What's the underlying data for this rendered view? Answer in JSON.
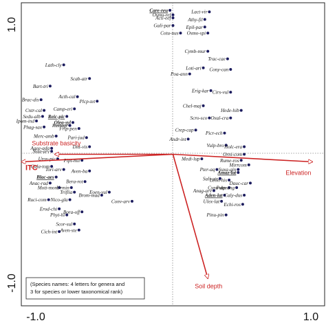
{
  "chart_data": {
    "type": "scatter",
    "title": "",
    "xlim": [
      -1.0,
      1.0
    ],
    "ylim": [
      -1.0,
      1.0
    ],
    "x_ticks": [
      "-1.0",
      "1.0"
    ],
    "y_ticks": [
      "1.0",
      "-1.0"
    ],
    "grid": false,
    "reference_lines": "dotted zero lines",
    "vector_color": "#cc2222",
    "point_color": "#1c1c5e",
    "note": "(Species names: 4 letters for genera and 3 for species or lower taxonomical rank)",
    "vectors": [
      {
        "label": "Substrate basicity",
        "x": -0.78,
        "y": 0.0,
        "bold": false
      },
      {
        "label": "ITC",
        "x": -1.0,
        "y": -0.05,
        "bold": true
      },
      {
        "label": "Elevation",
        "x": 0.92,
        "y": -0.05,
        "bold": false
      },
      {
        "label": "Soil depth",
        "x": 0.23,
        "y": -0.82,
        "bold": false
      }
    ],
    "species": [
      {
        "name": "Care-reu",
        "x": -0.02,
        "y": 0.95,
        "bold": true
      },
      {
        "name": "Lact-vir",
        "x": 0.24,
        "y": 0.94
      },
      {
        "name": "Osmu-ref",
        "x": 0.0,
        "y": 0.92
      },
      {
        "name": "Acti-eef",
        "x": 0.0,
        "y": 0.9
      },
      {
        "name": "Athy-fil",
        "x": 0.21,
        "y": 0.89
      },
      {
        "name": "Gali-par",
        "x": 0.0,
        "y": 0.85
      },
      {
        "name": "Epil-par",
        "x": 0.21,
        "y": 0.84
      },
      {
        "name": "Cotu-nus",
        "x": 0.05,
        "y": 0.8
      },
      {
        "name": "Osmo-spi",
        "x": 0.23,
        "y": 0.8
      },
      {
        "name": "Cymb-mur",
        "x": 0.23,
        "y": 0.68
      },
      {
        "name": "Trac-cae",
        "x": 0.36,
        "y": 0.63
      },
      {
        "name": "Lath-cly",
        "x": -0.72,
        "y": 0.59
      },
      {
        "name": "Loti-ari",
        "x": 0.2,
        "y": 0.57
      },
      {
        "name": "Cony-can",
        "x": 0.38,
        "y": 0.56
      },
      {
        "name": "Poa-ann",
        "x": 0.11,
        "y": 0.53
      },
      {
        "name": "Scab-atr",
        "x": -0.55,
        "y": 0.5
      },
      {
        "name": "Bart-tri",
        "x": -0.81,
        "y": 0.45
      },
      {
        "name": "Erig-kar",
        "x": 0.25,
        "y": 0.42
      },
      {
        "name": "Cirs-vul",
        "x": 0.38,
        "y": 0.41
      },
      {
        "name": "Acth-cal",
        "x": -0.63,
        "y": 0.38
      },
      {
        "name": "Brac-dis",
        "x": -0.87,
        "y": 0.36
      },
      {
        "name": "Plcp-tet",
        "x": -0.5,
        "y": 0.35
      },
      {
        "name": "Chel-maj",
        "x": 0.2,
        "y": 0.32
      },
      {
        "name": "Camp-eri",
        "x": -0.65,
        "y": 0.3
      },
      {
        "name": "Cntr-cal",
        "x": -0.85,
        "y": 0.29
      },
      {
        "name": "Hede-hib",
        "x": 0.45,
        "y": 0.29
      },
      {
        "name": "Sedu-alb",
        "x": -0.86,
        "y": 0.25
      },
      {
        "name": "Reic-pic",
        "x": -0.7,
        "y": 0.25,
        "bold": true
      },
      {
        "name": "Scro-sco",
        "x": 0.24,
        "y": 0.24
      },
      {
        "name": "Oxal-cra",
        "x": 0.38,
        "y": 0.24
      },
      {
        "name": "Ipom-ind",
        "x": -0.9,
        "y": 0.22
      },
      {
        "name": "Olea-syl",
        "x": -0.66,
        "y": 0.21,
        "bold": true
      },
      {
        "name": "Rustagr",
        "x": -0.68,
        "y": 0.19
      },
      {
        "name": "Phag-sax",
        "x": -0.85,
        "y": 0.18
      },
      {
        "name": "Crep-cap",
        "x": 0.15,
        "y": 0.16
      },
      {
        "name": "Frlp-pen",
        "x": -0.62,
        "y": 0.17
      },
      {
        "name": "Picr-ech",
        "x": 0.34,
        "y": 0.14
      },
      {
        "name": "Merc-amb",
        "x": -0.77,
        "y": 0.12
      },
      {
        "name": "Pari-jud",
        "x": -0.57,
        "y": 0.11
      },
      {
        "name": "Andr-int",
        "x": 0.1,
        "y": 0.1
      },
      {
        "name": "Vulp-bro",
        "x": 0.35,
        "y": 0.06
      },
      {
        "name": "Agee-ada",
        "x": -0.8,
        "y": 0.04
      },
      {
        "name": "Ditt-vis",
        "x": -0.55,
        "y": 0.05
      },
      {
        "name": "Holc-era",
        "x": 0.47,
        "y": 0.05
      },
      {
        "name": "Sida-arv",
        "x": -0.8,
        "y": 0.02
      },
      {
        "name": "Orni-com",
        "x": 0.47,
        "y": 0.0
      },
      {
        "name": "Uros-pic",
        "x": -0.76,
        "y": -0.03
      },
      {
        "name": "Pipt-mil",
        "x": -0.6,
        "y": -0.04
      },
      {
        "name": "Medi-lup",
        "x": 0.19,
        "y": -0.03
      },
      {
        "name": "Rume-ros",
        "x": 0.45,
        "y": -0.04
      },
      {
        "name": "Gala-tom",
        "x": -0.8,
        "y": -0.08
      },
      {
        "name": "Mirrcom",
        "x": 0.5,
        "y": -0.07
      },
      {
        "name": "Tori-arv",
        "x": -0.72,
        "y": -0.1
      },
      {
        "name": "Aven-ba",
        "x": -0.55,
        "y": -0.11
      },
      {
        "name": "Pter-aq",
        "x": 0.29,
        "y": -0.1
      },
      {
        "name": "Suxa-gin",
        "x": 0.43,
        "y": -0.1
      },
      {
        "name": "Blac-aes",
        "x": -0.77,
        "y": -0.15,
        "bold": true
      },
      {
        "name": "Amaz-lat",
        "x": 0.43,
        "y": -0.12,
        "bold": true
      },
      {
        "name": "Anac-rad",
        "x": -0.81,
        "y": -0.19
      },
      {
        "name": "Bera-rot",
        "x": -0.58,
        "y": -0.18
      },
      {
        "name": "Sali-atr",
        "x": 0.31,
        "y": -0.16
      },
      {
        "name": "Leon-his",
        "x": 0.37,
        "y": -0.17
      },
      {
        "name": "Dauc-car",
        "x": 0.51,
        "y": -0.19
      },
      {
        "name": "Moti-mon",
        "x": -0.75,
        "y": -0.22
      },
      {
        "name": "Urmin",
        "x": -0.67,
        "y": -0.22
      },
      {
        "name": "Eoen-vul",
        "x": -0.42,
        "y": -0.25
      },
      {
        "name": "Anag-arv",
        "x": 0.27,
        "y": -0.24
      },
      {
        "name": "Cyno-dac",
        "x": 0.37,
        "y": -0.22
      },
      {
        "name": "Putp-ang",
        "x": 0.42,
        "y": -0.22
      },
      {
        "name": "Triflia",
        "x": -0.65,
        "y": -0.25
      },
      {
        "name": "Brom-mad",
        "x": -0.47,
        "y": -0.27
      },
      {
        "name": "Aden-lat",
        "x": 0.34,
        "y": -0.27,
        "bold": true
      },
      {
        "name": "Caly-dus",
        "x": 0.47,
        "y": -0.27
      },
      {
        "name": "Ruci-com",
        "x": -0.82,
        "y": -0.3
      },
      {
        "name": "Nico-gla",
        "x": -0.68,
        "y": -0.3
      },
      {
        "name": "Conv-arv",
        "x": -0.27,
        "y": -0.31
      },
      {
        "name": "Ulex-lat",
        "x": 0.32,
        "y": -0.31
      },
      {
        "name": "Echi-ros",
        "x": 0.46,
        "y": -0.33
      },
      {
        "name": "Erod-chi",
        "x": -0.75,
        "y": -0.36
      },
      {
        "name": "Bora-off",
        "x": -0.6,
        "y": -0.38
      },
      {
        "name": "Phyt-hi",
        "x": -0.7,
        "y": -0.4
      },
      {
        "name": "Pinu-pin",
        "x": 0.35,
        "y": -0.4
      },
      {
        "name": "Scor-sul",
        "x": -0.65,
        "y": -0.46
      },
      {
        "name": "Aven-ste",
        "x": -0.62,
        "y": -0.5
      },
      {
        "name": "Cich-int",
        "x": -0.75,
        "y": -0.51
      }
    ]
  }
}
